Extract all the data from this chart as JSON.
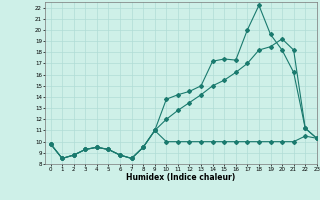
{
  "xlabel": "Humidex (Indice chaleur)",
  "xlim": [
    -0.5,
    23
  ],
  "ylim": [
    8,
    22.5
  ],
  "yticks": [
    8,
    9,
    10,
    11,
    12,
    13,
    14,
    15,
    16,
    17,
    18,
    19,
    20,
    21,
    22
  ],
  "xticks": [
    0,
    1,
    2,
    3,
    4,
    5,
    6,
    7,
    8,
    9,
    10,
    11,
    12,
    13,
    14,
    15,
    16,
    17,
    18,
    19,
    20,
    21,
    22,
    23
  ],
  "bg_color": "#cef0e8",
  "line_color": "#1a7a6e",
  "grid_color": "#b0ddd6",
  "line1_x": [
    0,
    1,
    2,
    3,
    4,
    5,
    6,
    7,
    8,
    9,
    10,
    11,
    12,
    13,
    14,
    15,
    16,
    17,
    18,
    19,
    20,
    21,
    22,
    23
  ],
  "line1_y": [
    9.8,
    8.5,
    8.8,
    9.3,
    9.5,
    9.3,
    8.8,
    8.5,
    9.5,
    11.0,
    10.0,
    10.0,
    10.0,
    10.0,
    10.0,
    10.0,
    10.0,
    10.0,
    10.0,
    10.0,
    10.0,
    10.0,
    10.5,
    10.3
  ],
  "line2_x": [
    0,
    1,
    2,
    3,
    4,
    5,
    6,
    7,
    8,
    9,
    10,
    11,
    12,
    13,
    14,
    15,
    16,
    17,
    18,
    19,
    20,
    21,
    22,
    23
  ],
  "line2_y": [
    9.8,
    8.5,
    8.8,
    9.3,
    9.5,
    9.3,
    8.8,
    8.5,
    9.5,
    11.0,
    13.8,
    14.2,
    14.5,
    15.0,
    17.2,
    17.4,
    17.3,
    20.0,
    22.2,
    19.6,
    18.2,
    16.2,
    11.2,
    10.3
  ],
  "line3_x": [
    0,
    1,
    2,
    3,
    4,
    5,
    6,
    7,
    8,
    9,
    10,
    11,
    12,
    13,
    14,
    15,
    16,
    17,
    18,
    19,
    20,
    21,
    22,
    23
  ],
  "line3_y": [
    9.8,
    8.5,
    8.8,
    9.3,
    9.5,
    9.3,
    8.8,
    8.5,
    9.5,
    11.0,
    12.0,
    12.8,
    13.5,
    14.2,
    15.0,
    15.5,
    16.2,
    17.0,
    18.2,
    18.5,
    19.2,
    18.2,
    11.2,
    10.3
  ]
}
